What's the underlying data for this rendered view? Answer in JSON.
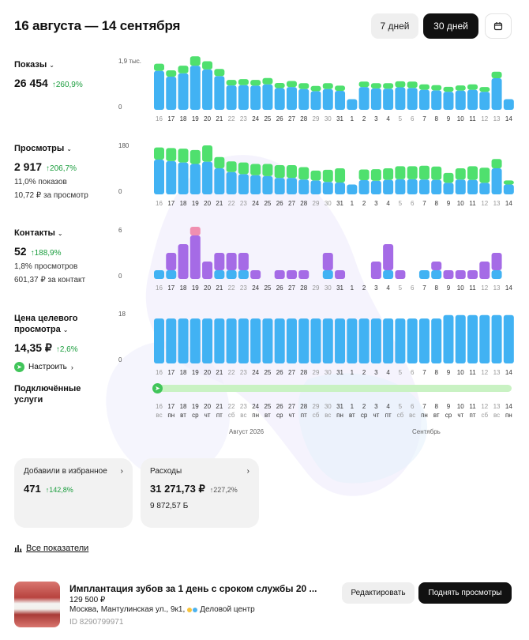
{
  "header": {
    "title": "16 августа — 14 сентября",
    "period_7": "7 дней",
    "period_30": "30 дней",
    "calendar_icon": "calendar-icon"
  },
  "colors": {
    "blue": "#41b2f3",
    "green": "#4fe06e",
    "purple": "#a56be6",
    "pink": "#f08fb0",
    "dark": "#111111",
    "delta": "#1a9d3d"
  },
  "metrics": {
    "views": {
      "label": "Показы",
      "value": "26 454",
      "delta": "↑260,9%"
    },
    "watches": {
      "label": "Просмотры",
      "value": "2 917",
      "delta": "↑206,7%",
      "sub1": "11,0% показов",
      "sub2": "10,72 ₽ за просмотр"
    },
    "contacts": {
      "label": "Контакты",
      "value": "52",
      "delta": "↑188,9%",
      "sub1": "1,8% просмотров",
      "sub2": "601,37 ₽ за контакт"
    },
    "price": {
      "label_line1": "Цена целевого",
      "label_line2": "просмотра",
      "value": "14,35 ₽",
      "delta": "↑2,6%",
      "setup": "Настроить"
    }
  },
  "services": {
    "label_line1": "Подключённые",
    "label_line2": "услуги"
  },
  "months": {
    "august": "Август 2026",
    "september": "Сентябрь"
  },
  "day_labels": [
    "16",
    "17",
    "18",
    "19",
    "20",
    "21",
    "22",
    "23",
    "24",
    "25",
    "26",
    "27",
    "28",
    "29",
    "30",
    "31",
    "1",
    "2",
    "3",
    "4",
    "5",
    "6",
    "7",
    "8",
    "9",
    "10",
    "11",
    "12",
    "13",
    "14"
  ],
  "weekday_labels": [
    "вс",
    "пн",
    "вт",
    "ср",
    "чт",
    "пт",
    "сб",
    "вс",
    "пн",
    "вт",
    "ср",
    "чт",
    "пт",
    "сб",
    "вс",
    "пн",
    "вт",
    "ср",
    "чт",
    "пт",
    "сб",
    "вс",
    "пн",
    "вт",
    "ср",
    "чт",
    "пт",
    "сб",
    "вс",
    "пн"
  ],
  "weekend_flags": [
    1,
    0,
    0,
    0,
    0,
    0,
    1,
    1,
    0,
    0,
    0,
    0,
    0,
    1,
    1,
    0,
    0,
    0,
    0,
    0,
    1,
    1,
    0,
    0,
    0,
    0,
    0,
    1,
    1,
    0
  ],
  "chart_data": [
    {
      "type": "bar",
      "name": "Показы",
      "ymax_label": "1,9 тыс.",
      "ymin_label": "0",
      "ylim": [
        0,
        1900
      ],
      "categories": [
        "16",
        "17",
        "18",
        "19",
        "20",
        "21",
        "22",
        "23",
        "24",
        "25",
        "26",
        "27",
        "28",
        "29",
        "30",
        "31",
        "1",
        "2",
        "3",
        "4",
        "5",
        "6",
        "7",
        "8",
        "9",
        "10",
        "11",
        "12",
        "13",
        "14"
      ],
      "series": [
        {
          "color": "blue",
          "values": [
            1420,
            1210,
            1330,
            1610,
            1470,
            1230,
            890,
            900,
            880,
            930,
            790,
            830,
            760,
            680,
            760,
            690,
            390,
            830,
            780,
            770,
            820,
            800,
            730,
            710,
            660,
            700,
            730,
            660,
            1150,
            390
          ]
        },
        {
          "color": "green",
          "values": [
            260,
            230,
            280,
            340,
            300,
            260,
            200,
            220,
            210,
            230,
            190,
            220,
            210,
            190,
            210,
            190,
            0,
            200,
            190,
            200,
            220,
            230,
            200,
            190,
            180,
            190,
            200,
            170,
            240,
            0
          ]
        }
      ]
    },
    {
      "type": "bar",
      "name": "Просмотры",
      "ymax_label": "180",
      "ymin_label": "0",
      "ylim": [
        0,
        180
      ],
      "categories": [
        "16",
        "17",
        "18",
        "19",
        "20",
        "21",
        "22",
        "23",
        "24",
        "25",
        "26",
        "27",
        "28",
        "29",
        "30",
        "31",
        "1",
        "2",
        "3",
        "4",
        "5",
        "6",
        "7",
        "8",
        "9",
        "10",
        "11",
        "12",
        "13",
        "14"
      ],
      "series": [
        {
          "color": "blue",
          "values": [
            120,
            115,
            110,
            105,
            113,
            90,
            77,
            70,
            66,
            63,
            57,
            57,
            51,
            48,
            43,
            41,
            34,
            49,
            47,
            50,
            52,
            52,
            51,
            50,
            40,
            51,
            50,
            40,
            90,
            34
          ]
        },
        {
          "color": "green",
          "values": [
            42,
            45,
            48,
            48,
            56,
            39,
            37,
            40,
            39,
            42,
            44,
            44,
            43,
            34,
            42,
            49,
            0,
            37,
            40,
            40,
            45,
            45,
            48,
            46,
            34,
            39,
            47,
            52,
            32,
            14
          ]
        }
      ]
    },
    {
      "type": "bar",
      "name": "Контакты",
      "ymax_label": "6",
      "ymin_label": "0",
      "ylim": [
        0,
        6
      ],
      "categories": [
        "16",
        "17",
        "18",
        "19",
        "20",
        "21",
        "22",
        "23",
        "24",
        "25",
        "26",
        "27",
        "28",
        "29",
        "30",
        "31",
        "1",
        "2",
        "3",
        "4",
        "5",
        "6",
        "7",
        "8",
        "9",
        "10",
        "11",
        "12",
        "13",
        "14"
      ],
      "series": [
        {
          "color": "blue",
          "values": [
            1,
            1,
            0,
            0,
            0,
            1,
            1,
            1,
            0,
            0,
            0,
            0,
            0,
            0,
            1,
            0,
            0,
            0,
            0,
            1,
            0,
            0,
            1,
            1,
            0,
            0,
            0,
            0,
            1,
            0
          ]
        },
        {
          "color": "purple",
          "values": [
            0,
            2,
            4,
            5,
            2,
            2,
            2,
            2,
            1,
            0,
            1,
            1,
            1,
            0,
            2,
            1,
            0,
            0,
            2,
            3,
            1,
            0,
            0,
            1,
            1,
            1,
            1,
            2,
            2,
            0
          ]
        },
        {
          "color": "pink",
          "values": [
            0,
            0,
            0,
            1,
            0,
            0,
            0,
            0,
            0,
            0,
            0,
            0,
            0,
            0,
            0,
            0,
            0,
            0,
            0,
            0,
            0,
            0,
            0,
            0,
            0,
            0,
            0,
            0,
            0,
            0
          ]
        }
      ]
    },
    {
      "type": "bar",
      "name": "Цена целевого просмотра",
      "ymax_label": "18",
      "ymin_label": "0",
      "ylim": [
        0,
        18
      ],
      "categories": [
        "16",
        "17",
        "18",
        "19",
        "20",
        "21",
        "22",
        "23",
        "24",
        "25",
        "26",
        "27",
        "28",
        "29",
        "30",
        "31",
        "1",
        "2",
        "3",
        "4",
        "5",
        "6",
        "7",
        "8",
        "9",
        "10",
        "11",
        "12",
        "13",
        "14"
      ],
      "series": [
        {
          "color": "blue",
          "values": [
            15.5,
            15.5,
            15.5,
            15.5,
            15.5,
            15.5,
            15.5,
            15.5,
            15.5,
            15.5,
            15.5,
            15.5,
            15.5,
            15.5,
            15.5,
            15.5,
            15.5,
            15.5,
            15.5,
            15.5,
            15.5,
            15.5,
            15.5,
            15.5,
            16.7,
            16.7,
            16.7,
            16.7,
            16.7,
            16.7
          ]
        }
      ]
    }
  ],
  "cards": {
    "favorites": {
      "title": "Добавили в избранное",
      "value": "471",
      "delta": "↑142,8%"
    },
    "expenses": {
      "title": "Расходы",
      "value": "31 271,73 ₽",
      "delta": "↑227,2%",
      "sub": "9 872,57 Б"
    }
  },
  "all_metrics": "Все показатели",
  "listing": {
    "title": "Имплантация зубов за 1 день с сроком службы 20 ...",
    "price": "129 500 ₽",
    "address": "Москва, Мантулинская ул., 9к1,",
    "metro": "Деловой центр",
    "id": "ID 8290799971",
    "edit": "Редактировать",
    "raise": "Поднять просмотры"
  }
}
